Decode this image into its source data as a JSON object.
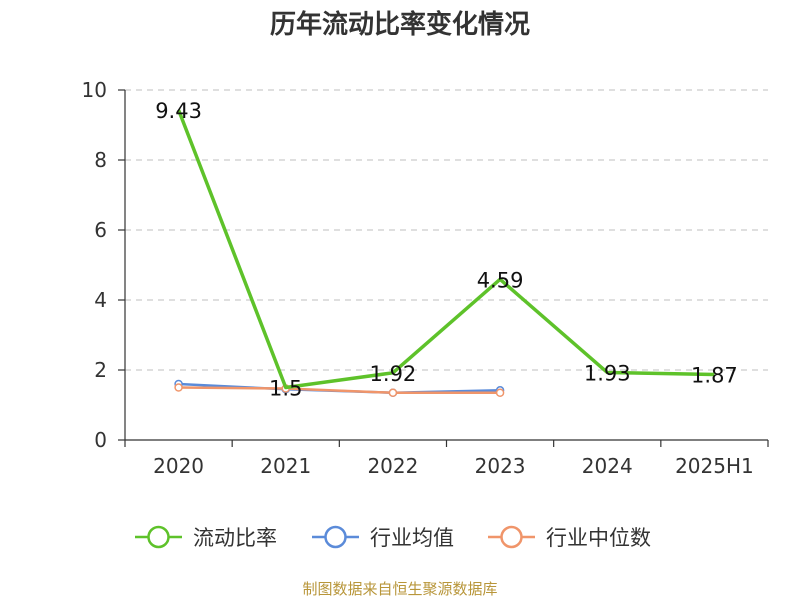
{
  "chart_data": {
    "type": "line",
    "title": "历年流动比率变化情况",
    "categories": [
      "2020",
      "2021",
      "2022",
      "2023",
      "2024",
      "2025H1"
    ],
    "ylim": [
      0,
      10
    ],
    "yticks": [
      0,
      2,
      4,
      6,
      8,
      10
    ],
    "grid": true,
    "legend_position": "bottom",
    "series": [
      {
        "name": "流动比率",
        "color": "#5ec22a",
        "values": [
          9.43,
          1.5,
          1.92,
          4.59,
          1.93,
          1.87
        ],
        "labels": [
          "9.43",
          "1.5",
          "1.92",
          "4.59",
          "1.93",
          "1.87"
        ]
      },
      {
        "name": "行业均值",
        "color": "#5b8bd9",
        "values": [
          1.6,
          1.45,
          1.35,
          1.42,
          null,
          null
        ]
      },
      {
        "name": "行业中位数",
        "color": "#f0956a",
        "values": [
          1.5,
          1.47,
          1.35,
          1.35,
          null,
          null
        ]
      }
    ],
    "source": "制图数据来自恒生聚源数据库"
  }
}
